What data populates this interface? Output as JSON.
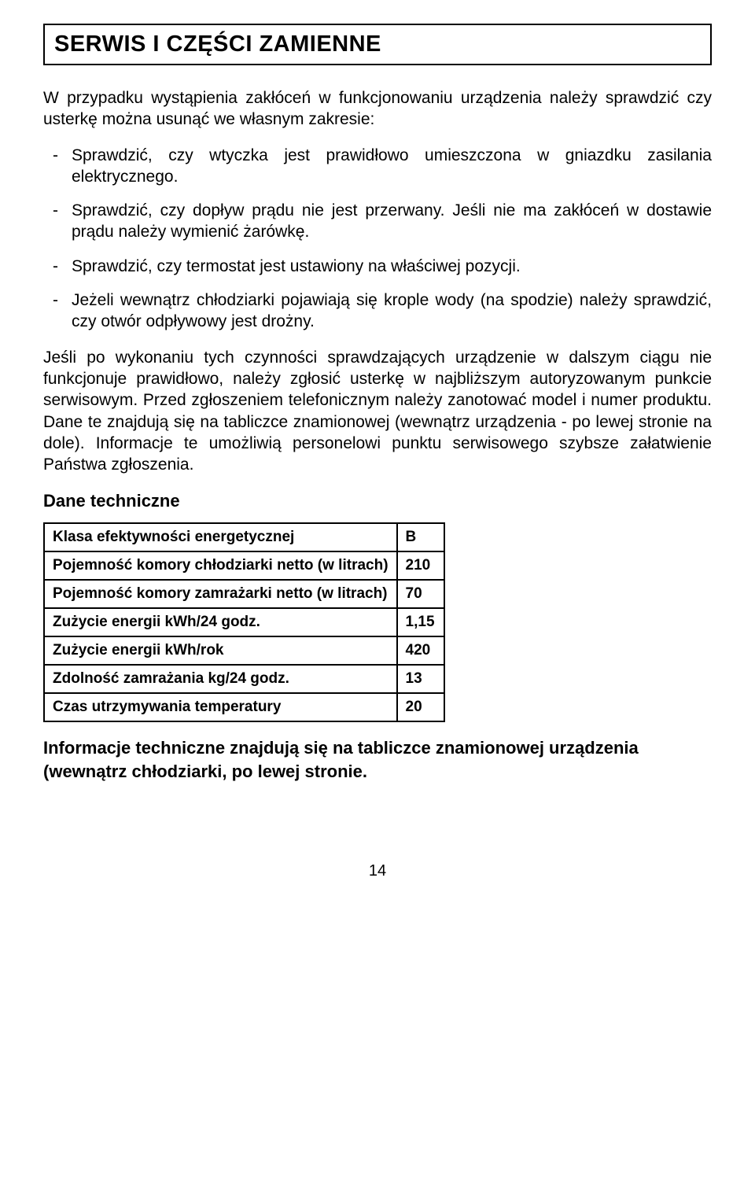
{
  "document": {
    "page_number": "14",
    "title": "SERWIS I CZĘŚCI ZAMIENNE",
    "intro": "W przypadku wystąpienia zakłóceń w funkcjonowaniu urządzenia należy sprawdzić czy usterkę można usunąć we własnym zakresie:",
    "bullets": [
      "Sprawdzić, czy wtyczka jest prawidłowo umieszczona w gniazdku zasilania elektrycznego.",
      "Sprawdzić, czy dopływ prądu nie jest przerwany. Jeśli nie ma zakłóceń w dostawie prądu należy wymienić żarówkę.",
      "Sprawdzić, czy termostat jest ustawiony na właściwej pozycji.",
      "Jeżeli wewnątrz chłodziarki pojawiają się krople wody (na spodzie) należy sprawdzić, czy otwór odpływowy jest drożny."
    ],
    "body_para": "Jeśli po wykonaniu tych czynności sprawdzających urządzenie w dalszym ciągu nie funkcjonuje prawidłowo, należy zgłosić usterkę w najbliższym autoryzowanym punkcie serwisowym. Przed zgłoszeniem telefonicznym należy zanotować model i numer produktu. Dane te znajdują się na tabliczce znamionowej (wewnątrz urządzenia - po lewej stronie na dole). Informacje te umożliwią personelowi punktu serwisowego szybsze załatwienie Państwa zgłoszenia.",
    "specs_heading": "Dane techniczne",
    "specs_table": {
      "columns": [
        "label",
        "value"
      ],
      "rows": [
        [
          "Klasa efektywności energetycznej",
          "B"
        ],
        [
          "Pojemność komory chłodziarki netto (w litrach)",
          "210"
        ],
        [
          "Pojemność komory zamrażarki netto (w litrach)",
          "70"
        ],
        [
          "Zużycie energii kWh/24 godz.",
          "1,15"
        ],
        [
          "Zużycie energii kWh/rok",
          "420"
        ],
        [
          "Zdolność zamrażania kg/24 godz.",
          "13"
        ],
        [
          "Czas utrzymywania temperatury",
          "20"
        ]
      ],
      "border_color": "#000000",
      "border_width": 2,
      "font_size": 19,
      "font_weight": "bold"
    },
    "closing": "Informacje techniczne znajdują się na tabliczce znamionowej urządzenia (wewnątrz chłodziarki, po lewej stronie.",
    "styles": {
      "background_color": "#ffffff",
      "text_color": "#000000",
      "title_font_size": 29,
      "body_font_size": 21,
      "heading_font_size": 22,
      "font_family": "Arial"
    }
  }
}
